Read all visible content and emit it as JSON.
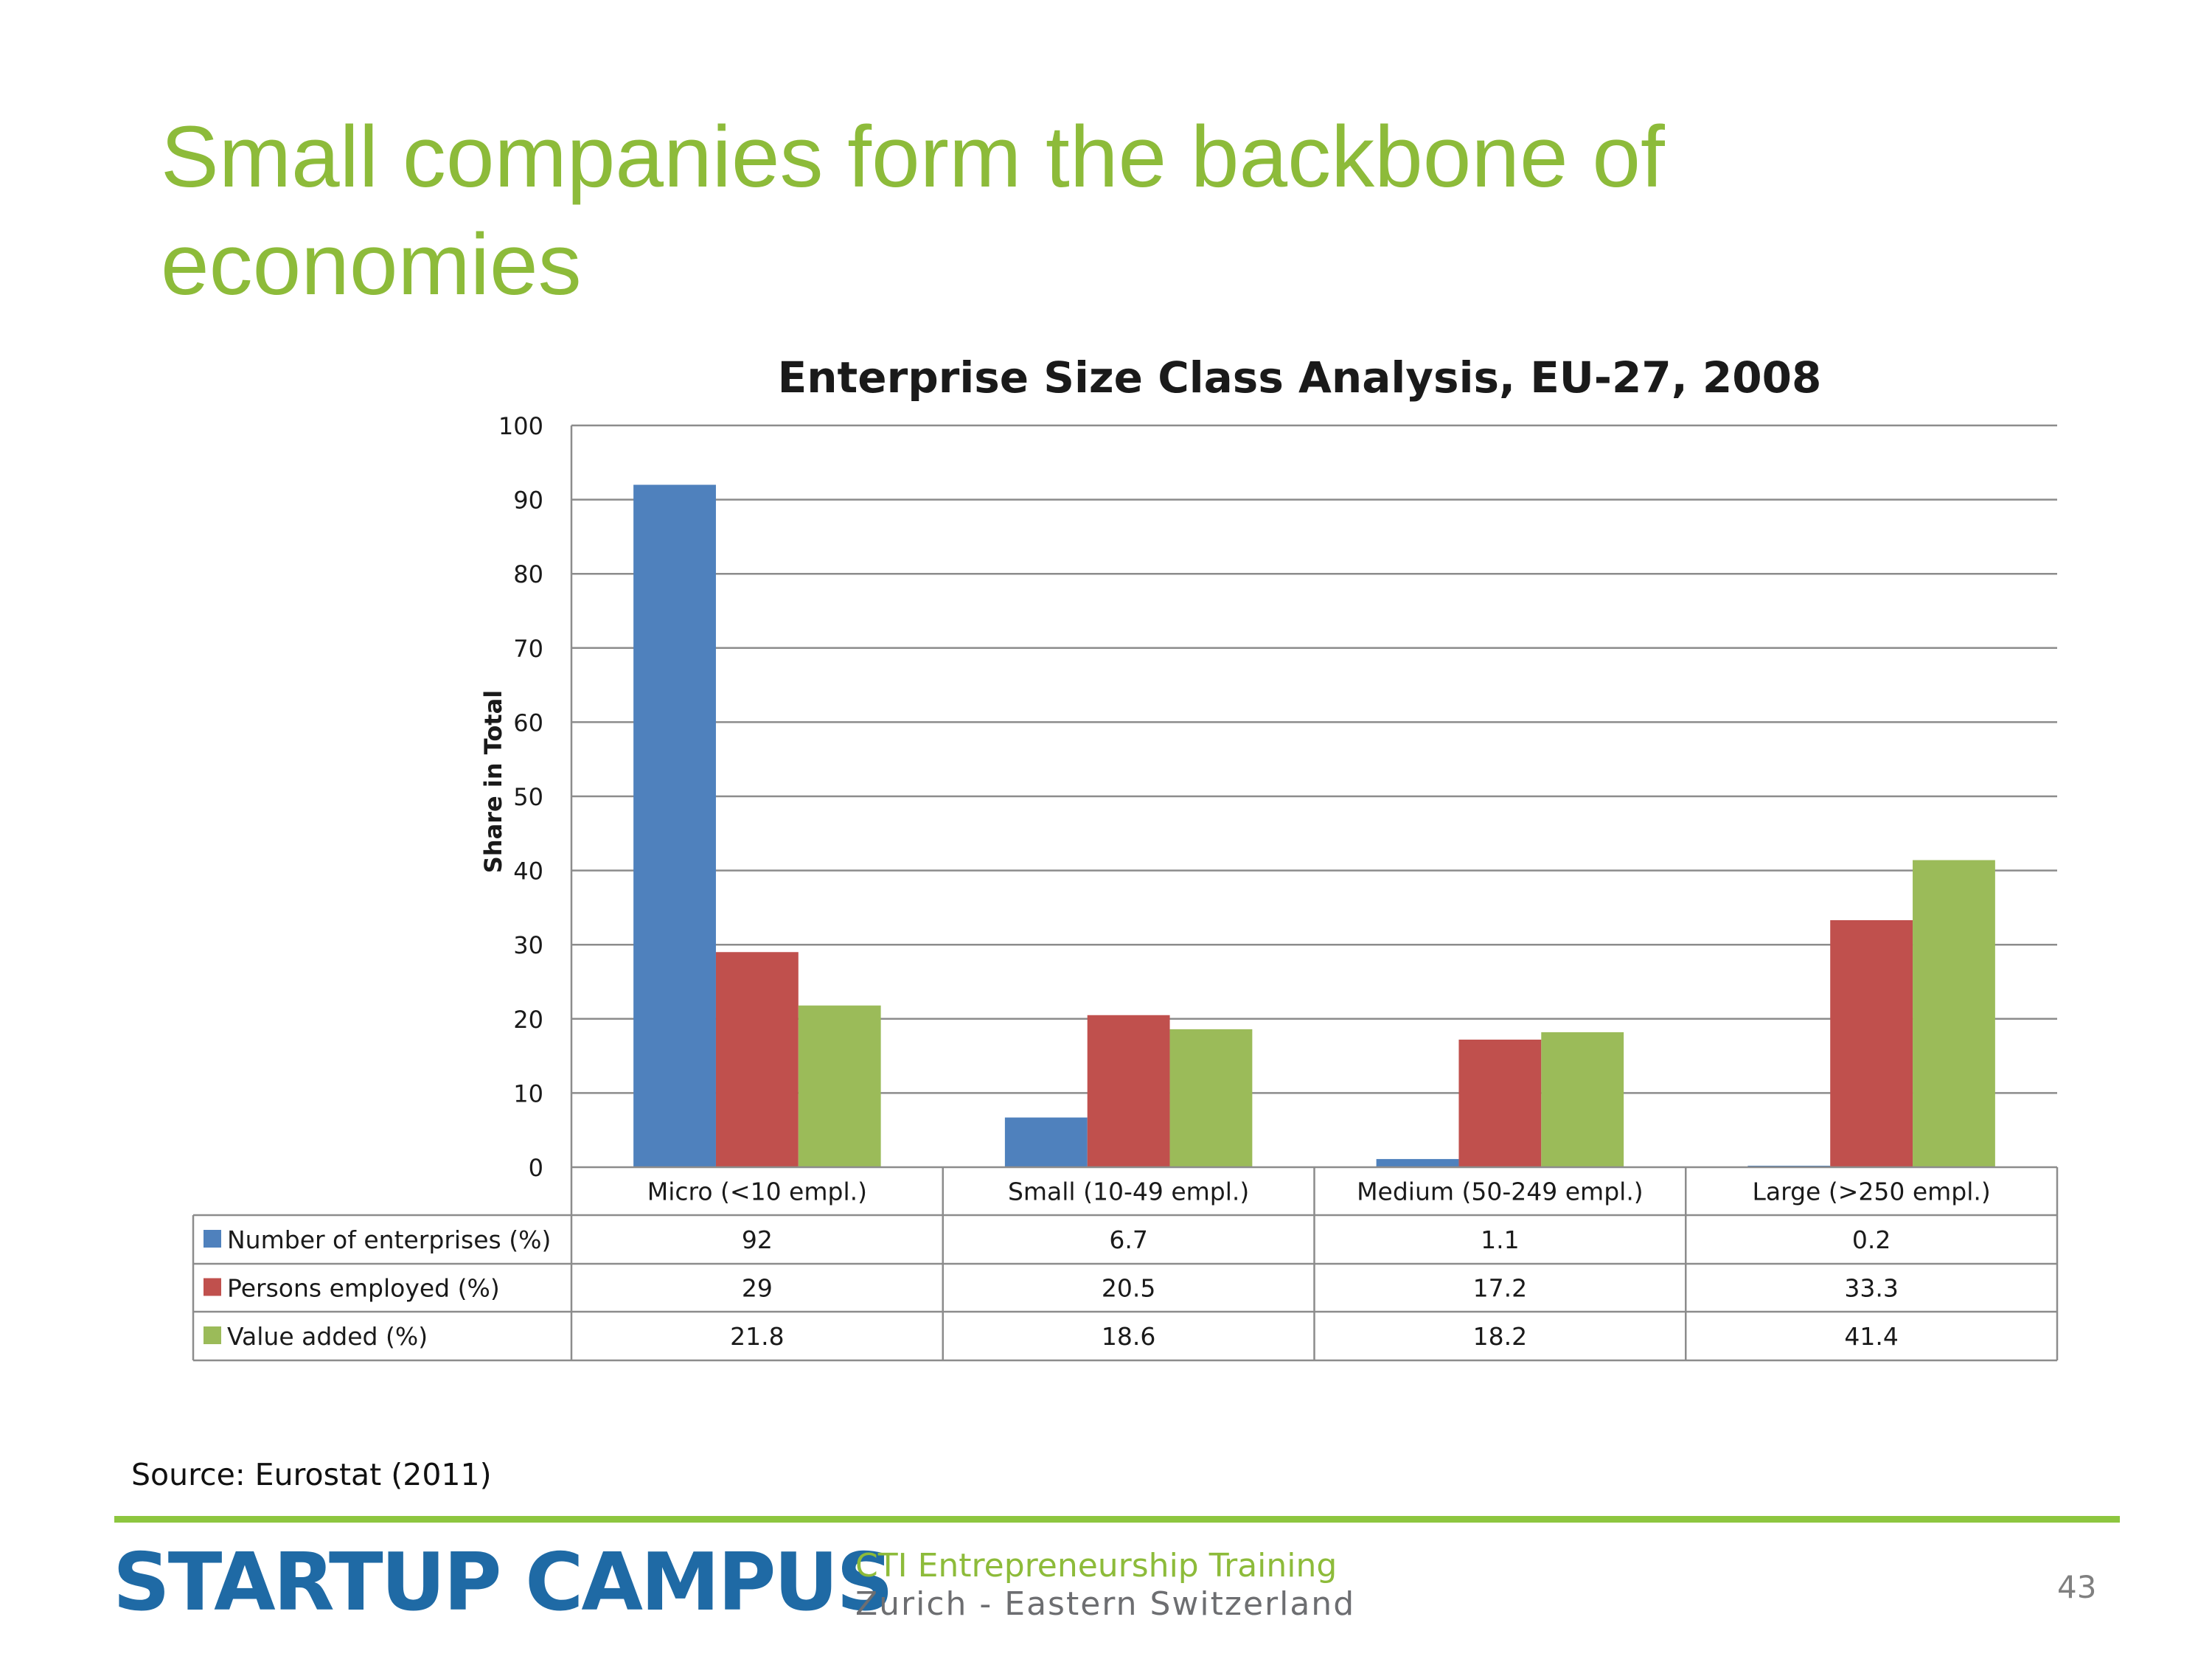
{
  "slide": {
    "title": "Small companies form the backbone of economies",
    "source": "Source: Eurostat (2011)",
    "page_number": "43"
  },
  "brand": {
    "name": "STARTUP CAMPUS",
    "tagline_line1": "CTI Entrepreneurship Training",
    "tagline_line2": "Zurich - Eastern Switzerland",
    "colors": {
      "blue": "#1f6aa5",
      "green": "#8dbb3a",
      "grey": "#6d6e71"
    }
  },
  "chart_data": {
    "type": "bar",
    "title": "Enterprise Size Class Analysis, EU-27, 2008",
    "ylabel": "Share in Total",
    "xlabel": "",
    "ylim": [
      0,
      100
    ],
    "yticks": [
      0,
      10,
      20,
      30,
      40,
      50,
      60,
      70,
      80,
      90,
      100
    ],
    "grid": true,
    "legend": "data-table",
    "categories": [
      "Micro (<10 empl.)",
      "Small (10-49 empl.)",
      "Medium (50-249 empl.)",
      "Large (>250 empl.)"
    ],
    "series": [
      {
        "name": "Number of enterprises (%)",
        "color": "#4f81bd",
        "values": [
          92,
          6.7,
          1.1,
          0.2
        ],
        "labels": [
          "92",
          "6.7",
          "1.1",
          "0.2"
        ]
      },
      {
        "name": "Persons employed (%)",
        "color": "#c0504d",
        "values": [
          29,
          20.5,
          17.2,
          33.3
        ],
        "labels": [
          "29",
          "20.5",
          "17.2",
          "33.3"
        ]
      },
      {
        "name": "Value added (%)",
        "color": "#9bbb59",
        "values": [
          21.8,
          18.6,
          18.2,
          41.4
        ],
        "labels": [
          "21.8",
          "18.6",
          "18.2",
          "41.4"
        ]
      }
    ]
  }
}
